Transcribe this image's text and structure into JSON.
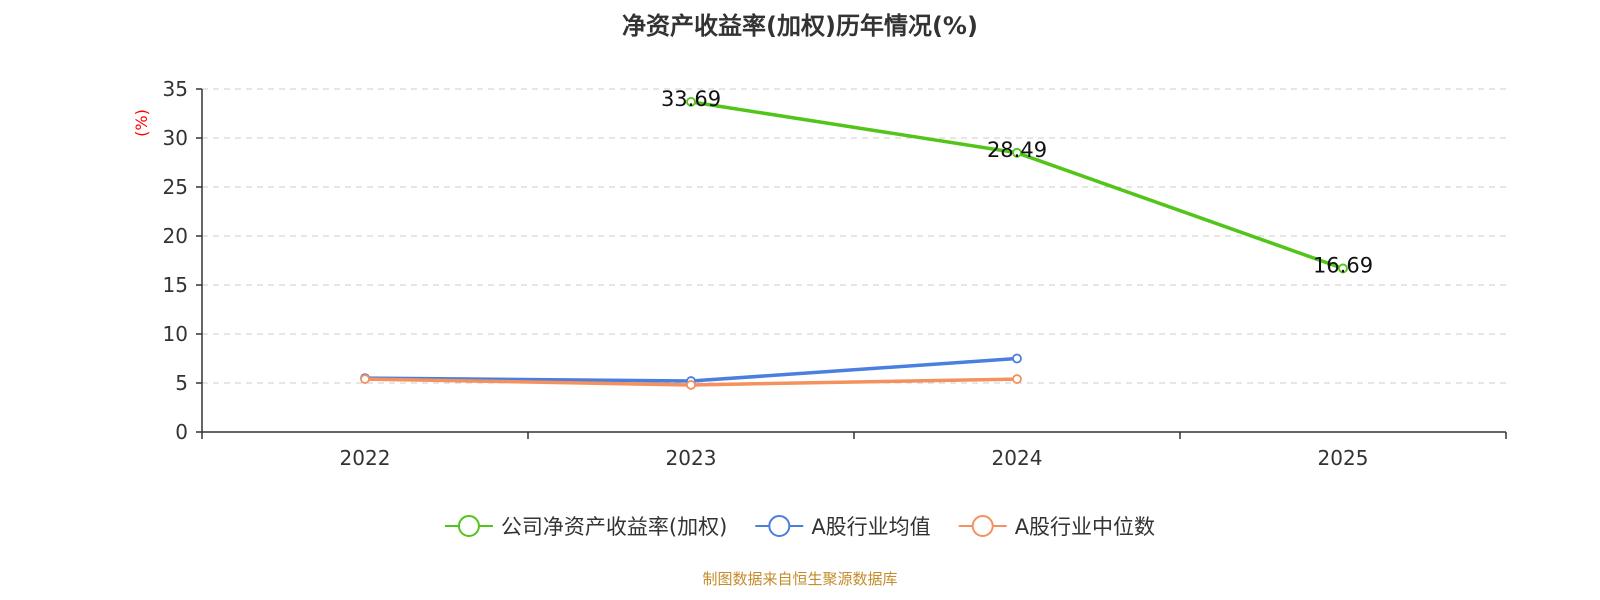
{
  "chart_data": {
    "type": "line",
    "title": "净资产收益率(加权)历年情况(%)",
    "ylabel": "(%)",
    "xlabel": "",
    "categories": [
      "2022",
      "2023",
      "2024",
      "2025"
    ],
    "ylim": [
      0,
      35
    ],
    "yticks": [
      0,
      5,
      10,
      15,
      20,
      25,
      30,
      35
    ],
    "grid": "horizontal dashed",
    "legend_position": "bottom",
    "series": [
      {
        "name": "公司净资产收益率(加权)",
        "color": "#52c41a",
        "values": [
          null,
          33.69,
          28.49,
          16.69
        ],
        "data_labels": [
          "",
          "33.69",
          "28.49",
          "16.69"
        ]
      },
      {
        "name": "A股行业均值",
        "color": "#4a7fe0",
        "values": [
          5.5,
          5.2,
          7.5,
          null
        ]
      },
      {
        "name": "A股行业中位数",
        "color": "#f4915e",
        "values": [
          5.4,
          4.8,
          5.4,
          null
        ]
      }
    ]
  },
  "source_note": "制图数据来自恒生聚源数据库",
  "colors": {
    "ylabel": "#ff0000",
    "source_note": "#c58b2b",
    "axis": "#333333",
    "grid": "#cccccc"
  }
}
